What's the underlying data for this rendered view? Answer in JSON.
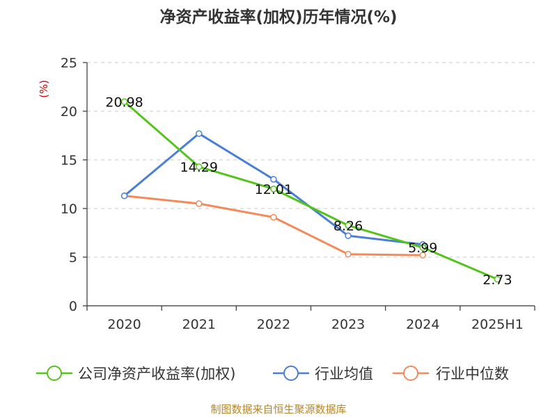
{
  "chart_data": {
    "type": "line",
    "title": "净资产收益率(加权)历年情况(%)",
    "ylabel": "(%)",
    "categories": [
      "2020",
      "2021",
      "2022",
      "2023",
      "2024",
      "2025H1"
    ],
    "ylim": [
      0,
      25
    ],
    "yticks": [
      0,
      5,
      10,
      15,
      20,
      25
    ],
    "grid": true,
    "legend_position": "bottom",
    "series": [
      {
        "name": "公司净资产收益率(加权)",
        "color": "#52c41a",
        "values": [
          20.98,
          14.29,
          12.01,
          8.26,
          5.99,
          2.73
        ],
        "labels": [
          "20.98",
          "14.29",
          "12.01",
          "8.26",
          "5.99",
          "2.73"
        ]
      },
      {
        "name": "行业均值",
        "color": "#4a7fd8",
        "values": [
          11.3,
          17.7,
          13.0,
          7.2,
          6.3,
          null
        ]
      },
      {
        "name": "行业中位数",
        "color": "#f5895a",
        "values": [
          11.3,
          10.5,
          9.1,
          5.3,
          5.2,
          null
        ]
      }
    ]
  },
  "source": "制图数据来自恒生聚源数据库"
}
